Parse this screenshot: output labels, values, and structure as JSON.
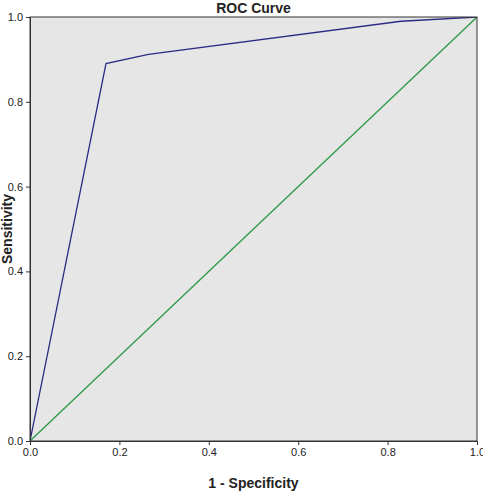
{
  "chart_data": {
    "type": "line",
    "title": "ROC Curve",
    "x_label": "1 - Specificity",
    "y_label": "Sensitivity",
    "xlim": [
      0,
      1
    ],
    "ylim": [
      0,
      1
    ],
    "xticks": [
      {
        "value": 0,
        "label": "0.0"
      },
      0.2,
      0.4,
      0.6,
      0.8,
      {
        "value": 1,
        "label": "1.0"
      }
    ],
    "yticks": [
      {
        "value": 0,
        "label": "0.0"
      },
      0.2,
      0.4,
      0.6,
      0.8,
      {
        "value": 1,
        "label": "1.0"
      }
    ],
    "grid": false,
    "series": [
      {
        "color": "#2b2b86",
        "x": [
          0,
          0.17,
          0.265,
          0.83,
          1
        ],
        "values": [
          0,
          0.89,
          0.912,
          0.99,
          1
        ]
      },
      {
        "color": "#2e9a4a",
        "x": [
          0,
          1
        ],
        "values": [
          0,
          1
        ]
      }
    ]
  }
}
